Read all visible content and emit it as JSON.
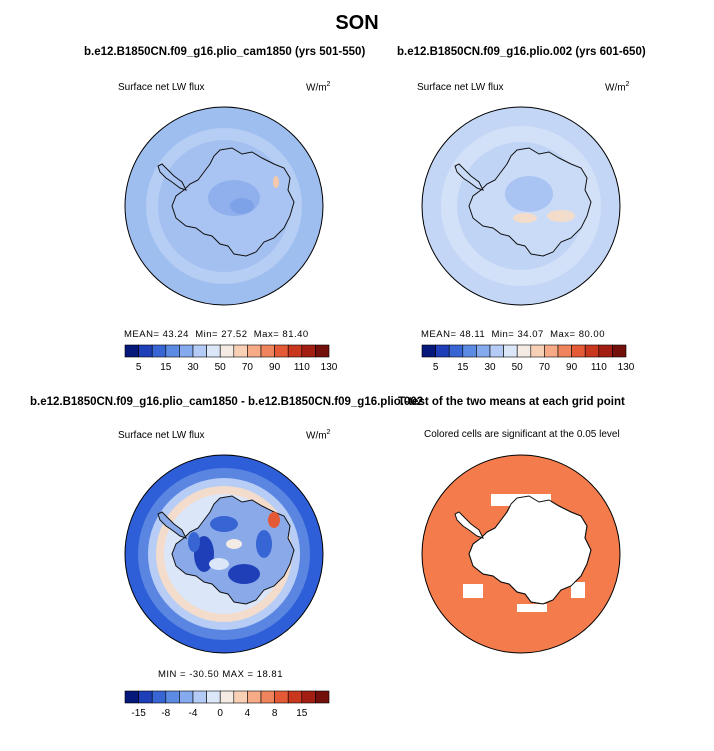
{
  "title": "SON",
  "colors": {
    "fill_orange": "#f47c4c",
    "coast": "#111111"
  },
  "panels": [
    {
      "run_title": "b.e12.B1850CN.f09_g16.plio_cam1850 (yrs 501-550)",
      "field": "Surface net LW flux",
      "units_base": "W/m",
      "units_exp": "2",
      "stats": {
        "mean_label": "MEAN=",
        "mean": "43.24",
        "min_label": "Min=",
        "min": "27.52",
        "max_label": "Max=",
        "max": "81.40"
      },
      "ocean": "#9fbef0",
      "land": "#a9c4f2"
    },
    {
      "run_title": "b.e12.B1850CN.f09_g16.plio.002 (yrs 601-650)",
      "field": "Surface net LW flux",
      "units_base": "W/m",
      "units_exp": "2",
      "stats": {
        "mean_label": "MEAN=",
        "mean": "48.11",
        "min_label": "Min=",
        "min": "34.07",
        "max_label": "Max=",
        "max": "80.00"
      },
      "ocean": "#c3d6f6",
      "land": "#c9dbf7"
    },
    {
      "run_title": "b.e12.B1850CN.f09_g16.plio_cam1850 - b.e12.B1850CN.f09_g16.plio.002",
      "field": "Surface net LW flux",
      "units_base": "W/m",
      "units_exp": "2",
      "stats_text": "MIN = -30.50  MAX =  18.81",
      "ocean": "#2f5fd8",
      "land": "#8aa9e8"
    },
    {
      "run_title": "T-test of the two means at each grid point",
      "field": "Colored cells are significant at the 0.05 level",
      "ocean": "#f47c4c",
      "land": "#ffffff"
    }
  ],
  "colorbars": {
    "absolute": {
      "colors": [
        "#06187a",
        "#1f3fb8",
        "#3766d4",
        "#5b8be3",
        "#85aaee",
        "#b3cbf5",
        "#dbe6f9",
        "#f4ece4",
        "#f8d0b6",
        "#f6ab86",
        "#f0845c",
        "#e45a37",
        "#c9371f",
        "#a31e12",
        "#73100b"
      ],
      "ticks": [
        "5",
        "15",
        "30",
        "50",
        "70",
        "90",
        "110",
        "130"
      ]
    },
    "difference": {
      "colors": [
        "#06187a",
        "#1f3fb8",
        "#3766d4",
        "#5b8be3",
        "#85aaee",
        "#b3cbf5",
        "#dbe6f9",
        "#f4ece4",
        "#f8d0b6",
        "#f6ab86",
        "#f0845c",
        "#e45a37",
        "#c9371f",
        "#a31e12",
        "#73100b"
      ],
      "ticks": [
        "-15",
        "-8",
        "-4",
        "0",
        "4",
        "8",
        "15"
      ]
    }
  }
}
